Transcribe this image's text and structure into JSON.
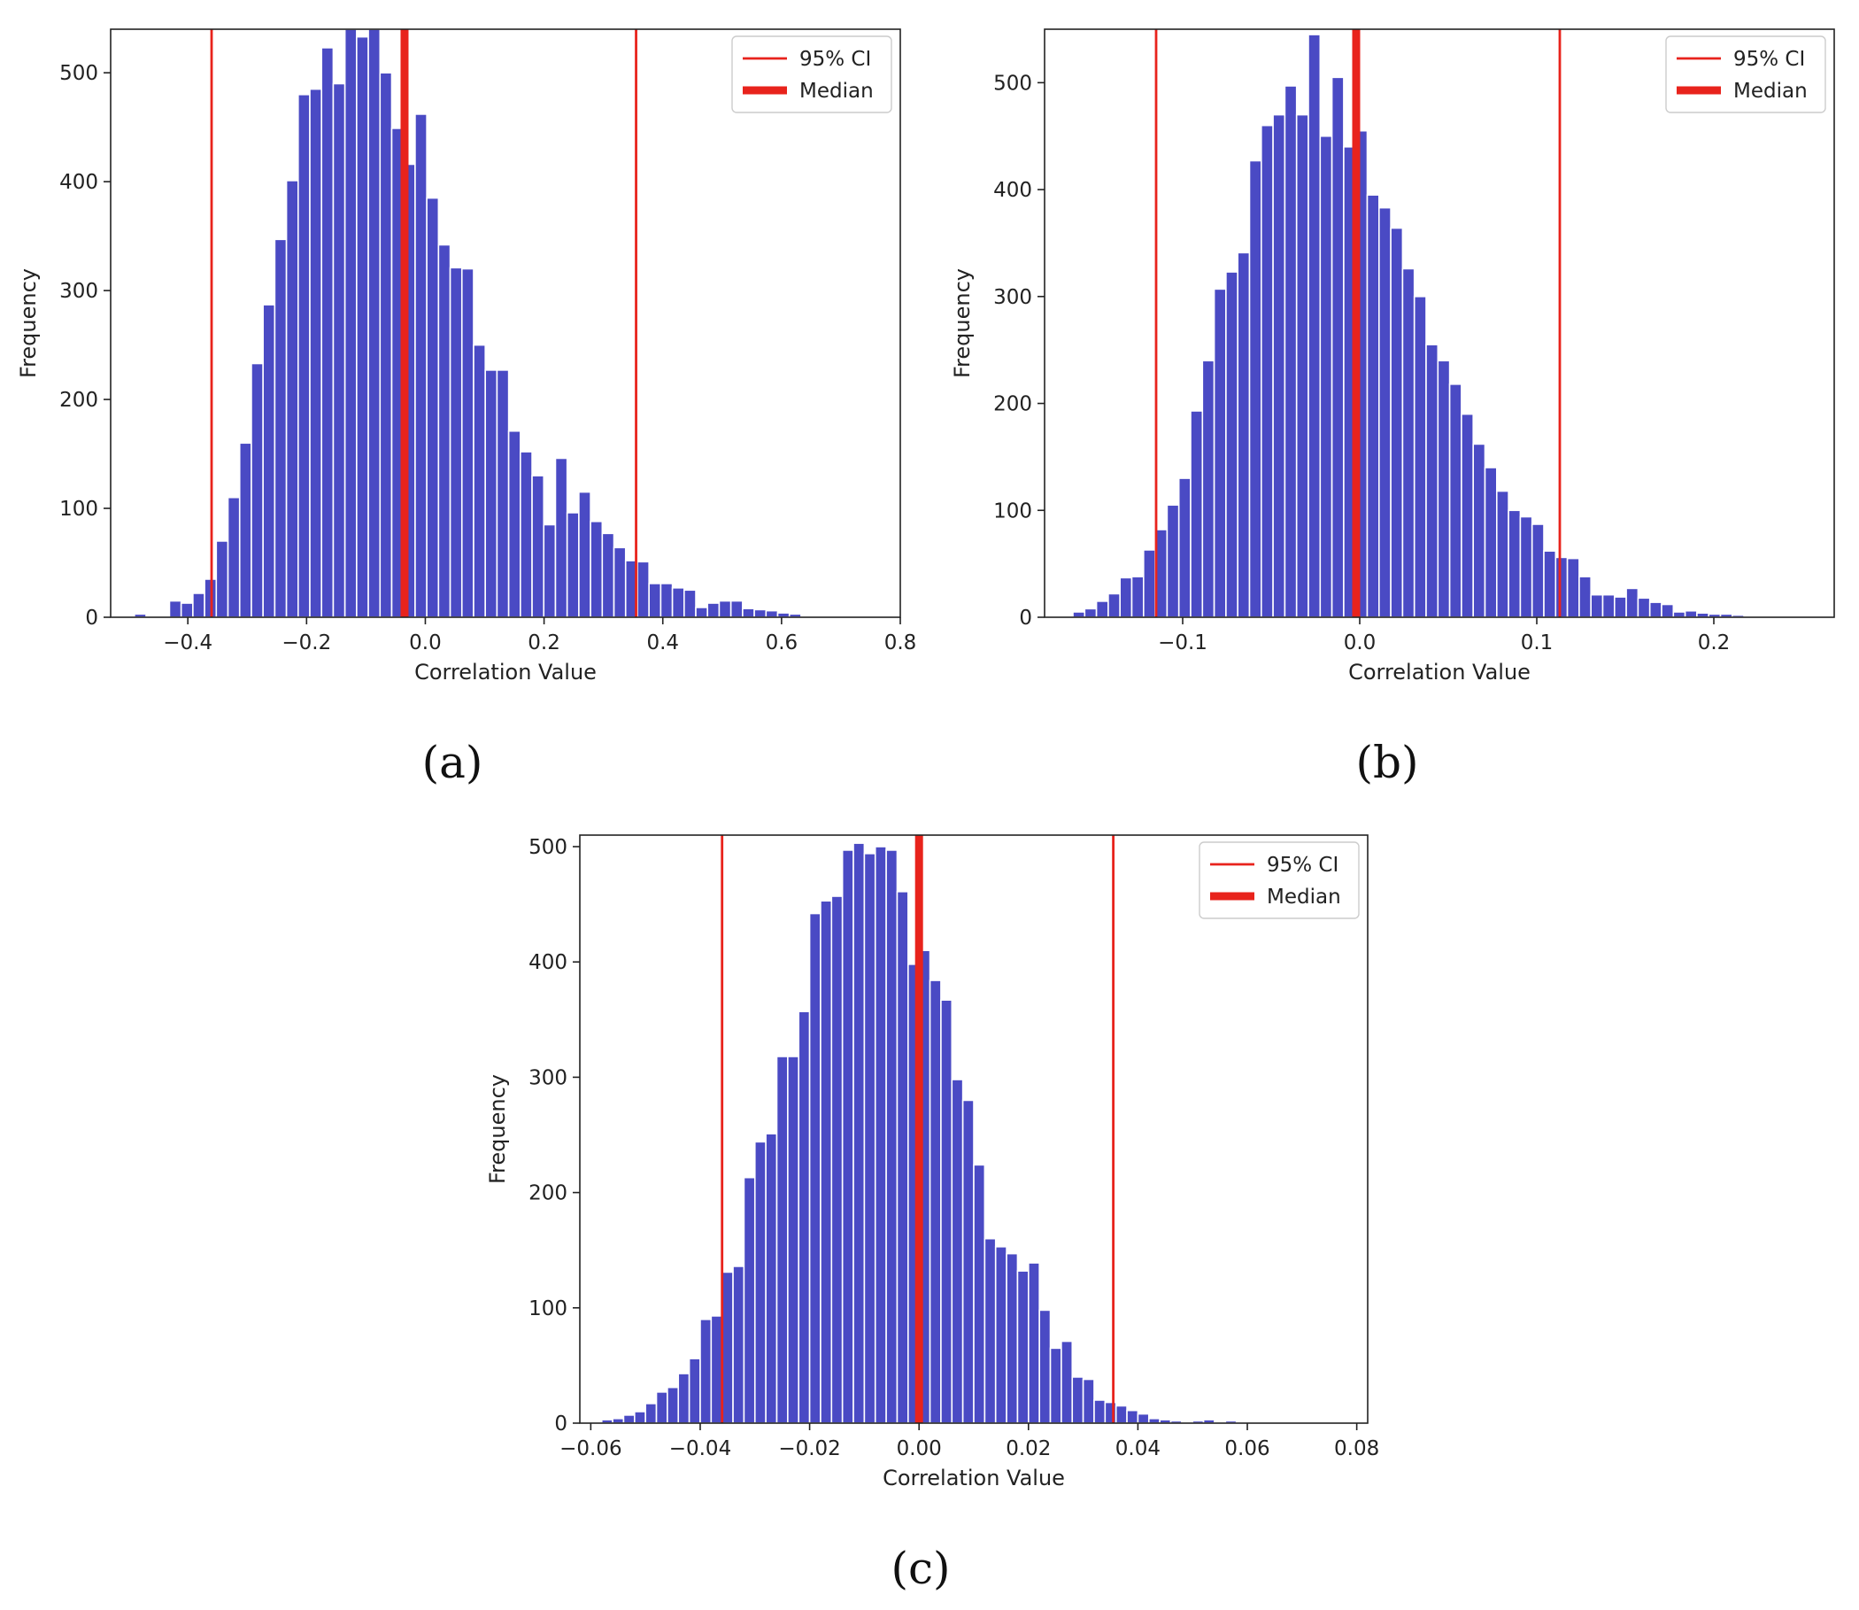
{
  "figure": {
    "panels": [
      {
        "caption": "(a)"
      },
      {
        "caption": "(b)"
      },
      {
        "caption": "(c)"
      }
    ]
  },
  "colors": {
    "bar": "#4a4ac4",
    "ci_line": "#e8231c",
    "median_line": "#e8231c",
    "axes": "#222222"
  },
  "chart_data": [
    {
      "type": "bar",
      "subtype": "histogram",
      "panel": "(a)",
      "xlabel": "Correlation Value",
      "ylabel": "Frequency",
      "xlim": [
        -0.53,
        0.8
      ],
      "ylim": [
        0,
        540
      ],
      "xticks": [
        -0.4,
        -0.2,
        0.0,
        0.2,
        0.4,
        0.6,
        0.8
      ],
      "xtick_labels": [
        "−0.4",
        "−0.2",
        "0.0",
        "0.2",
        "0.4",
        "0.6",
        "0.8"
      ],
      "yticks": [
        0,
        100,
        200,
        300,
        400,
        500
      ],
      "ytick_labels": [
        "0",
        "100",
        "200",
        "300",
        "400",
        "500"
      ],
      "bin_start": -0.49,
      "bin_width": 0.0197,
      "values": [
        3,
        0,
        0,
        15,
        13,
        22,
        35,
        70,
        110,
        160,
        233,
        287,
        347,
        401,
        480,
        485,
        523,
        490,
        540,
        533,
        540,
        500,
        449,
        416,
        462,
        385,
        342,
        321,
        320,
        250,
        227,
        227,
        171,
        152,
        130,
        85,
        146,
        96,
        115,
        88,
        77,
        64,
        52,
        51,
        31,
        31,
        27,
        25,
        9,
        13,
        15,
        15,
        8,
        7,
        6,
        4,
        3
      ],
      "ci_lower": -0.36,
      "ci_upper": 0.355,
      "median": -0.035,
      "legend": [
        "95% CI",
        "Median"
      ],
      "legend_position": "upper-right"
    },
    {
      "type": "bar",
      "subtype": "histogram",
      "panel": "(b)",
      "xlabel": "Correlation Value",
      "ylabel": "Frequency",
      "xlim": [
        -0.178,
        0.268
      ],
      "ylim": [
        0,
        550
      ],
      "xticks": [
        -0.1,
        0.0,
        0.1,
        0.2
      ],
      "xtick_labels": [
        "−0.1",
        "0.0",
        "0.1",
        "0.2"
      ],
      "yticks": [
        0,
        100,
        200,
        300,
        400,
        500
      ],
      "ytick_labels": [
        "0",
        "100",
        "200",
        "300",
        "400",
        "500"
      ],
      "bin_start": -0.162,
      "bin_width": 0.00665,
      "values": [
        5,
        8,
        15,
        22,
        37,
        38,
        63,
        82,
        105,
        130,
        193,
        240,
        307,
        323,
        341,
        427,
        460,
        470,
        497,
        470,
        545,
        450,
        505,
        440,
        455,
        395,
        383,
        364,
        326,
        300,
        255,
        240,
        218,
        190,
        162,
        140,
        118,
        100,
        94,
        87,
        62,
        56,
        55,
        38,
        21,
        21,
        19,
        27,
        18,
        14,
        12,
        5,
        6,
        4,
        3,
        3,
        2
      ],
      "ci_lower": -0.115,
      "ci_upper": 0.113,
      "median": -0.002,
      "legend": [
        "95% CI",
        "Median"
      ],
      "legend_position": "upper-right"
    },
    {
      "type": "bar",
      "subtype": "histogram",
      "panel": "(c)",
      "xlabel": "Correlation Value",
      "ylabel": "Frequency",
      "xlim": [
        -0.062,
        0.082
      ],
      "ylim": [
        0,
        510
      ],
      "xticks": [
        -0.06,
        -0.04,
        -0.02,
        0.0,
        0.02,
        0.04,
        0.06,
        0.08
      ],
      "xtick_labels": [
        "−0.06",
        "−0.04",
        "−0.02",
        "0.00",
        "0.02",
        "0.04",
        "0.06",
        "0.08"
      ],
      "yticks": [
        0,
        100,
        200,
        300,
        400,
        500
      ],
      "ytick_labels": [
        "0",
        "100",
        "200",
        "300",
        "400",
        "500"
      ],
      "bin_start": -0.058,
      "bin_width": 0.002,
      "values": [
        3,
        4,
        7,
        10,
        17,
        27,
        31,
        43,
        56,
        90,
        93,
        131,
        136,
        213,
        244,
        251,
        318,
        318,
        357,
        442,
        453,
        457,
        497,
        503,
        494,
        500,
        497,
        461,
        398,
        410,
        384,
        367,
        298,
        280,
        224,
        160,
        153,
        147,
        132,
        139,
        98,
        65,
        71,
        40,
        38,
        20,
        18,
        15,
        11,
        8,
        4,
        3,
        2,
        1,
        2,
        3,
        1,
        2
      ],
      "ci_lower": -0.036,
      "ci_upper": 0.0355,
      "median": 0.0,
      "legend": [
        "95% CI",
        "Median"
      ],
      "legend_position": "upper-right"
    }
  ]
}
